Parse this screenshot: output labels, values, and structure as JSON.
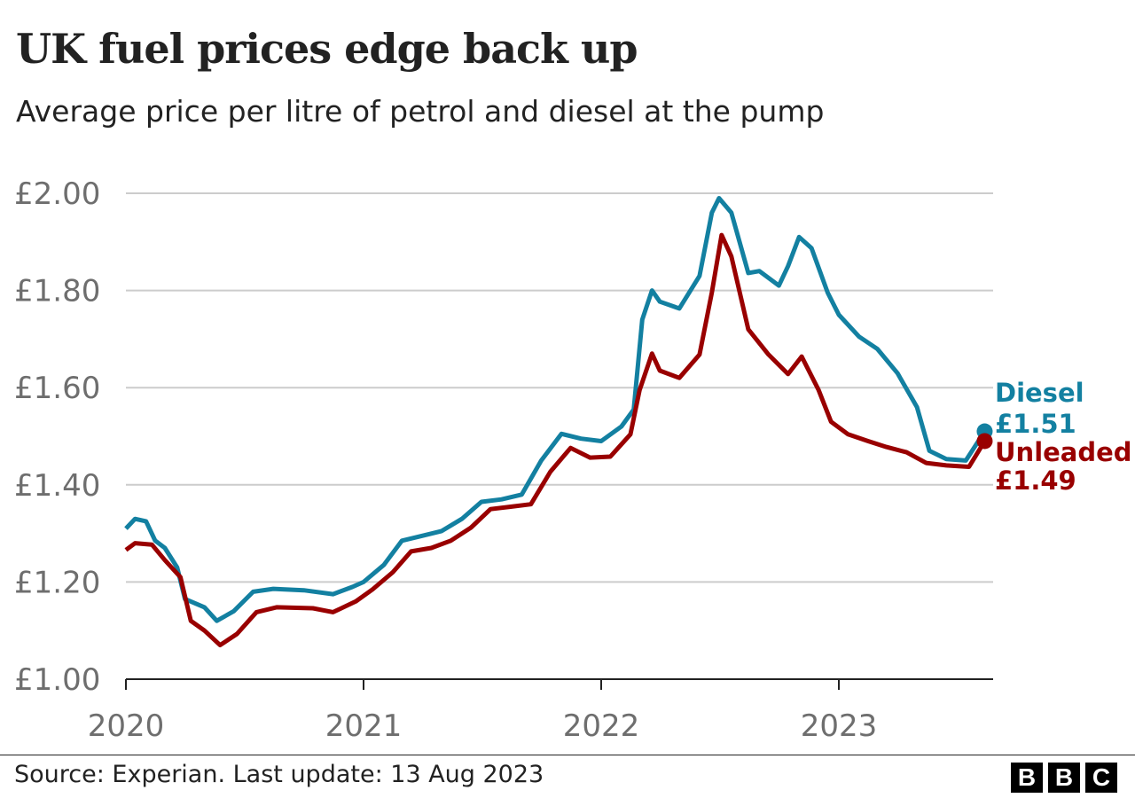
{
  "title": "UK fuel prices edge back up",
  "subtitle": "Average price per litre of petrol and diesel at the pump",
  "source": "Source: Experian. Last update: 13 Aug 2023",
  "logo": [
    "B",
    "B",
    "C"
  ],
  "chart_data": {
    "type": "line",
    "title": "UK fuel prices edge back up",
    "subtitle": "Average price per litre of petrol and diesel at the pump",
    "xlabel": "",
    "ylabel": "",
    "xlim": [
      "2020-01-01",
      "2023-08-13"
    ],
    "ylim": [
      1.0,
      2.0
    ],
    "y_ticks": [
      1.0,
      1.2,
      1.4,
      1.6,
      1.8,
      2.0
    ],
    "y_tick_labels": [
      "£1.00",
      "£1.20",
      "£1.40",
      "£1.60",
      "£1.80",
      "£2.00"
    ],
    "x_ticks": [
      "2020-01-01",
      "2021-01-01",
      "2022-01-01",
      "2023-01-01"
    ],
    "x_tick_labels": [
      "2020",
      "2021",
      "2022",
      "2023"
    ],
    "grid": "horizontal",
    "legend": "direct labels at line ends (right)",
    "series": [
      {
        "name": "Diesel",
        "end_label": "£1.51",
        "color": "#1380A1",
        "points": [
          [
            "2020-01-01",
            1.31
          ],
          [
            "2020-01-15",
            1.33
          ],
          [
            "2020-02-01",
            1.325
          ],
          [
            "2020-02-15",
            1.285
          ],
          [
            "2020-03-01",
            1.27
          ],
          [
            "2020-03-20",
            1.23
          ],
          [
            "2020-04-01",
            1.165
          ],
          [
            "2020-05-01",
            1.148
          ],
          [
            "2020-05-20",
            1.12
          ],
          [
            "2020-06-15",
            1.14
          ],
          [
            "2020-07-15",
            1.18
          ],
          [
            "2020-08-15",
            1.186
          ],
          [
            "2020-10-01",
            1.183
          ],
          [
            "2020-11-15",
            1.175
          ],
          [
            "2020-12-15",
            1.19
          ],
          [
            "2021-01-01",
            1.2
          ],
          [
            "2021-02-01",
            1.235
          ],
          [
            "2021-03-01",
            1.285
          ],
          [
            "2021-04-01",
            1.295
          ],
          [
            "2021-05-01",
            1.305
          ],
          [
            "2021-06-01",
            1.33
          ],
          [
            "2021-07-01",
            1.365
          ],
          [
            "2021-08-01",
            1.37
          ],
          [
            "2021-09-01",
            1.38
          ],
          [
            "2021-10-01",
            1.45
          ],
          [
            "2021-11-01",
            1.505
          ],
          [
            "2021-12-01",
            1.495
          ],
          [
            "2022-01-01",
            1.49
          ],
          [
            "2022-02-01",
            1.52
          ],
          [
            "2022-02-20",
            1.555
          ],
          [
            "2022-03-05",
            1.74
          ],
          [
            "2022-03-20",
            1.8
          ],
          [
            "2022-04-01",
            1.777
          ],
          [
            "2022-05-01",
            1.763
          ],
          [
            "2022-06-01",
            1.83
          ],
          [
            "2022-06-20",
            1.96
          ],
          [
            "2022-07-01",
            1.99
          ],
          [
            "2022-07-20",
            1.96
          ],
          [
            "2022-08-15",
            1.836
          ],
          [
            "2022-09-01",
            1.84
          ],
          [
            "2022-10-01",
            1.81
          ],
          [
            "2022-10-15",
            1.85
          ],
          [
            "2022-11-01",
            1.91
          ],
          [
            "2022-11-20",
            1.887
          ],
          [
            "2022-12-15",
            1.795
          ],
          [
            "2023-01-01",
            1.75
          ],
          [
            "2023-02-01",
            1.705
          ],
          [
            "2023-03-01",
            1.68
          ],
          [
            "2023-04-01",
            1.63
          ],
          [
            "2023-05-01",
            1.56
          ],
          [
            "2023-05-20",
            1.47
          ],
          [
            "2023-06-15",
            1.453
          ],
          [
            "2023-07-15",
            1.45
          ],
          [
            "2023-08-13",
            1.51
          ]
        ]
      },
      {
        "name": "Unleaded",
        "end_label": "£1.49",
        "color": "#990000",
        "points": [
          [
            "2020-01-01",
            1.266
          ],
          [
            "2020-01-15",
            1.28
          ],
          [
            "2020-02-10",
            1.277
          ],
          [
            "2020-03-01",
            1.245
          ],
          [
            "2020-03-25",
            1.21
          ],
          [
            "2020-04-10",
            1.12
          ],
          [
            "2020-05-01",
            1.1
          ],
          [
            "2020-05-25",
            1.07
          ],
          [
            "2020-06-20",
            1.093
          ],
          [
            "2020-07-20",
            1.138
          ],
          [
            "2020-08-20",
            1.148
          ],
          [
            "2020-10-15",
            1.146
          ],
          [
            "2020-11-15",
            1.138
          ],
          [
            "2020-12-20",
            1.16
          ],
          [
            "2021-01-15",
            1.185
          ],
          [
            "2021-02-15",
            1.22
          ],
          [
            "2021-03-15",
            1.263
          ],
          [
            "2021-04-15",
            1.27
          ],
          [
            "2021-05-15",
            1.285
          ],
          [
            "2021-06-15",
            1.312
          ],
          [
            "2021-07-15",
            1.35
          ],
          [
            "2021-08-15",
            1.355
          ],
          [
            "2021-09-15",
            1.36
          ],
          [
            "2021-10-15",
            1.427
          ],
          [
            "2021-11-15",
            1.476
          ],
          [
            "2021-12-15",
            1.456
          ],
          [
            "2022-01-15",
            1.458
          ],
          [
            "2022-02-15",
            1.504
          ],
          [
            "2022-03-01",
            1.595
          ],
          [
            "2022-03-20",
            1.67
          ],
          [
            "2022-04-01",
            1.635
          ],
          [
            "2022-05-01",
            1.62
          ],
          [
            "2022-06-01",
            1.668
          ],
          [
            "2022-06-20",
            1.796
          ],
          [
            "2022-07-05",
            1.914
          ],
          [
            "2022-07-20",
            1.87
          ],
          [
            "2022-08-15",
            1.72
          ],
          [
            "2022-09-15",
            1.668
          ],
          [
            "2022-10-15",
            1.628
          ],
          [
            "2022-11-05",
            1.664
          ],
          [
            "2022-12-01",
            1.595
          ],
          [
            "2022-12-20",
            1.53
          ],
          [
            "2023-01-15",
            1.504
          ],
          [
            "2023-02-15",
            1.49
          ],
          [
            "2023-03-15",
            1.478
          ],
          [
            "2023-04-15",
            1.467
          ],
          [
            "2023-05-15",
            1.445
          ],
          [
            "2023-06-15",
            1.44
          ],
          [
            "2023-07-20",
            1.437
          ],
          [
            "2023-08-13",
            1.49
          ]
        ]
      }
    ]
  }
}
